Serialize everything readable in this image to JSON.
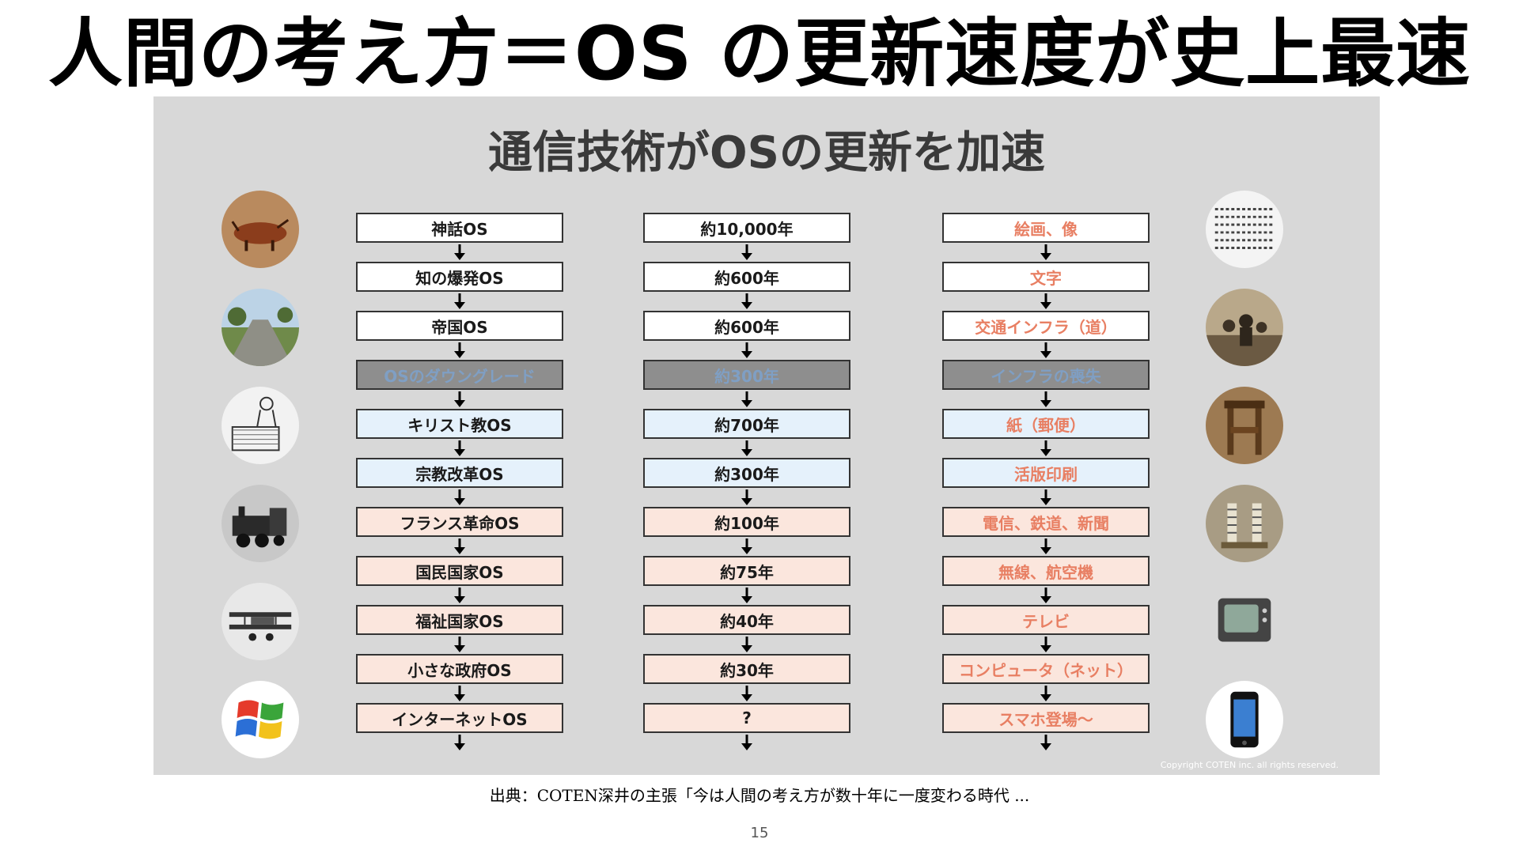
{
  "slide": {
    "title": "人間の考え方＝OS の更新速度が史上最速",
    "panel_title": "通信技術がOSの更新を加速",
    "copyright": "Copyright COTEN inc. all rights reserved.",
    "source": "出典：COTEN深井の主張「今は人間の考え方が数十年に一度変わる時代 ...",
    "page_number": "15"
  },
  "colors": {
    "panel_bg": "#d8d8d8",
    "box_white": "#ffffff",
    "box_gray": "#8e8e8e",
    "box_blue": "#e5f1fb",
    "box_pink": "#fbe6dd",
    "tech_text": "#e87f63",
    "faded_text": "#7f9fc4"
  },
  "rows": [
    {
      "os": "神話OS",
      "period": "約10,000年",
      "tech": "絵画、像",
      "tone": "white"
    },
    {
      "os": "知の爆発OS",
      "period": "約600年",
      "tech": "文字",
      "tone": "white"
    },
    {
      "os": "帝国OS",
      "period": "約600年",
      "tech": "交通インフラ（道）",
      "tone": "white"
    },
    {
      "os": "OSのダウングレード",
      "period": "約300年",
      "tech": "インフラの喪失",
      "tone": "gray"
    },
    {
      "os": "キリスト教OS",
      "period": "約700年",
      "tech": "紙（郵便）",
      "tone": "blue"
    },
    {
      "os": "宗教改革OS",
      "period": "約300年",
      "tech": "活版印刷",
      "tone": "blue"
    },
    {
      "os": "フランス革命OS",
      "period": "約100年",
      "tech": "電信、鉄道、新聞",
      "tone": "pink"
    },
    {
      "os": "国民国家OS",
      "period": "約75年",
      "tech": "無線、航空機",
      "tone": "pink"
    },
    {
      "os": "福祉国家OS",
      "period": "約40年",
      "tech": "テレビ",
      "tone": "pink"
    },
    {
      "os": "小さな政府OS",
      "period": "約30年",
      "tech": "コンピュータ（ネット）",
      "tone": "pink"
    },
    {
      "os": "インターネットOS",
      "period": "?",
      "tech": "スマホ登場〜",
      "tone": "pink"
    }
  ],
  "left_images": [
    "cave-painting-icon",
    "roman-road-icon",
    "monk-scriptorium-icon",
    "steam-locomotive-icon",
    "biplane-icon",
    "windows-logo-icon"
  ],
  "right_images": [
    "ancient-script-icon",
    "napoleon-crowd-icon",
    "printing-press-icon",
    "telegraph-machine-icon",
    "crt-television-icon",
    "smartphone-icon"
  ]
}
